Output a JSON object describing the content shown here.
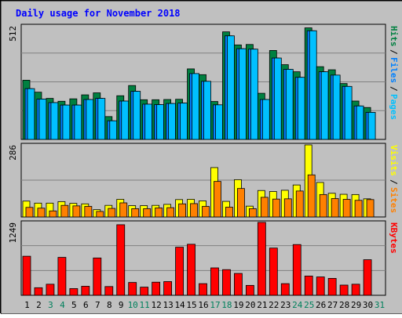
{
  "chart_data": {
    "type": "bar",
    "title": "Daily usage for November 2018",
    "categories": [
      "1",
      "2",
      "3",
      "4",
      "5",
      "6",
      "7",
      "8",
      "9",
      "10",
      "11",
      "12",
      "13",
      "14",
      "15",
      "16",
      "17",
      "18",
      "19",
      "20",
      "21",
      "22",
      "23",
      "24",
      "25",
      "26",
      "27",
      "28",
      "29",
      "30",
      "31"
    ],
    "weekend_days": [
      "3",
      "4",
      "10",
      "11",
      "17",
      "18",
      "24",
      "25",
      "31"
    ],
    "panels": [
      {
        "id": "pages-files-hits",
        "ymax_label": "512",
        "ylim": [
          0,
          512
        ],
        "series": [
          {
            "name": "Hits",
            "color": "#008040",
            "values": [
              267,
              213,
              185,
              172,
              183,
              201,
              210,
              103,
              197,
              243,
              179,
              179,
              180,
              181,
              318,
              292,
              171,
              485,
              426,
              428,
              208,
              401,
              337,
              305,
              503,
              328,
              314,
              252,
              173,
              144,
              0
            ]
          },
          {
            "name": "Files",
            "color": "#0080ff",
            "values": [
              229,
              182,
              166,
              155,
              155,
              180,
              185,
              84,
              173,
              217,
              159,
              157,
              162,
              164,
              297,
              262,
              156,
              467,
              409,
              407,
              180,
              367,
              316,
              280,
              490,
              305,
              290,
              239,
              151,
              122,
              0
            ]
          },
          {
            "name": "Pages",
            "color": "#00c0ff",
            "values": [
              229,
              182,
              166,
              155,
              155,
              180,
              185,
              84,
              173,
              217,
              159,
              157,
              162,
              164,
              297,
              262,
              156,
              467,
              409,
              407,
              180,
              367,
              316,
              280,
              490,
              305,
              290,
              239,
              151,
              122,
              0
            ]
          }
        ],
        "legend": [
          {
            "text": "Hits",
            "color": "#008040"
          },
          {
            "text": "Files",
            "color": "#0080ff"
          },
          {
            "text": "Pages",
            "color": "#00c0ff"
          }
        ]
      },
      {
        "id": "visits-sites",
        "ymax_label": "286",
        "ylim": [
          0,
          286
        ],
        "series": [
          {
            "name": "Visits",
            "color": "#ffff00",
            "values": [
              63,
              55,
              55,
              61,
              54,
              52,
              29,
              46,
              70,
              45,
              45,
              46,
              50,
              69,
              70,
              64,
              196,
              62,
              148,
              43,
              105,
              101,
              106,
              127,
              286,
              137,
              94,
              90,
              89,
              72,
              0
            ]
          },
          {
            "name": "Sites",
            "color": "#ff8000",
            "values": [
              38,
              35,
              24,
              46,
              44,
              42,
              22,
              34,
              56,
              33,
              33,
              36,
              37,
              52,
              53,
              42,
              141,
              39,
              113,
              33,
              78,
              71,
              72,
              103,
              167,
              89,
              73,
              70,
              66,
              69,
              0
            ]
          }
        ],
        "legend": [
          {
            "text": "Visits",
            "color": "#ffff00"
          },
          {
            "text": "Sites",
            "color": "#ff8000"
          }
        ]
      },
      {
        "id": "kbytes",
        "ymax_label": "1249",
        "ylim": [
          0,
          1249
        ],
        "series": [
          {
            "name": "KBytes",
            "color": "#ff0000",
            "values": [
              670,
              130,
              190,
              650,
              115,
              155,
              640,
              150,
              1210,
              220,
              140,
              225,
              235,
              825,
              875,
              200,
              470,
              440,
              375,
              170,
              1250,
              810,
              200,
              870,
              330,
              315,
              290,
              175,
              190,
              610,
              0
            ]
          }
        ],
        "legend": [
          {
            "text": "KBytes",
            "color": "#ff0000"
          }
        ]
      }
    ]
  },
  "colors": {
    "background": "#c0c0c0",
    "plot_background": "#c0c0c0",
    "title": "#0000ff",
    "weekday_label": "#000000",
    "weekend_label": "#00805c",
    "legend_separator": "#000000"
  }
}
